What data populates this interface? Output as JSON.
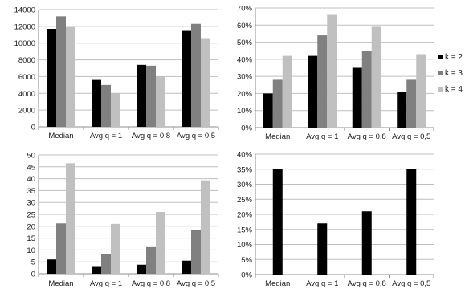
{
  "legend": {
    "items": [
      {
        "label": "k = 2",
        "color": "#000000"
      },
      {
        "label": "k = 3",
        "color": "#808080"
      },
      {
        "label": "k = 4",
        "color": "#c0c0c0"
      }
    ]
  },
  "chart_data": [
    {
      "type": "bar",
      "categories": [
        "Median",
        "Avg q = 1",
        "Avg q = 0,8",
        "Avg q = 0,5"
      ],
      "series": [
        {
          "name": "k = 2",
          "values": [
            11700,
            5600,
            7400,
            11550
          ]
        },
        {
          "name": "k = 3",
          "values": [
            13200,
            5000,
            7300,
            12300
          ]
        },
        {
          "name": "k = 4",
          "values": [
            11900,
            4000,
            6000,
            10600
          ]
        }
      ],
      "ylim": [
        0,
        14000
      ],
      "yticks": [
        "0",
        "2000",
        "4000",
        "6000",
        "8000",
        "10000",
        "12000",
        "14000"
      ],
      "grid": true
    },
    {
      "type": "bar",
      "categories": [
        "Median",
        "Avg q = 1",
        "Avg q = 0,8",
        "Avg q = 0,5"
      ],
      "series": [
        {
          "name": "k = 2",
          "values": [
            0.2,
            0.42,
            0.35,
            0.21
          ]
        },
        {
          "name": "k = 3",
          "values": [
            0.28,
            0.54,
            0.45,
            0.28
          ]
        },
        {
          "name": "k = 4",
          "values": [
            0.42,
            0.66,
            0.59,
            0.43
          ]
        }
      ],
      "ylim": [
        0,
        0.7
      ],
      "yticks": [
        "0%",
        "10%",
        "20%",
        "30%",
        "40%",
        "50%",
        "60%",
        "70%"
      ],
      "grid": true,
      "legend": "right"
    },
    {
      "type": "bar",
      "categories": [
        "Median",
        "Avg q = 1",
        "Avg q = 0,8",
        "Avg q = 0,5"
      ],
      "series": [
        {
          "name": "k = 2",
          "values": [
            6,
            3.2,
            3.8,
            5.5
          ]
        },
        {
          "name": "k = 3",
          "values": [
            21.2,
            8.3,
            11.2,
            18.5
          ]
        },
        {
          "name": "k = 4",
          "values": [
            46.5,
            21,
            26,
            39.3
          ]
        }
      ],
      "ylim": [
        0,
        50
      ],
      "yticks": [
        "0",
        "5",
        "10",
        "15",
        "20",
        "25",
        "30",
        "35",
        "40",
        "45",
        "50"
      ],
      "grid": true
    },
    {
      "type": "bar",
      "categories": [
        "Median",
        "Avg q = 1",
        "Avg q = 0,8",
        "Avg q = 0,5"
      ],
      "series": [
        {
          "name": "k = 2",
          "values": [
            0.35,
            0.17,
            0.21,
            0.35
          ]
        }
      ],
      "ylim": [
        0,
        0.4
      ],
      "yticks": [
        "0%",
        "5%",
        "10%",
        "15%",
        "20%",
        "25%",
        "30%",
        "35%",
        "40%"
      ],
      "grid": true
    }
  ]
}
